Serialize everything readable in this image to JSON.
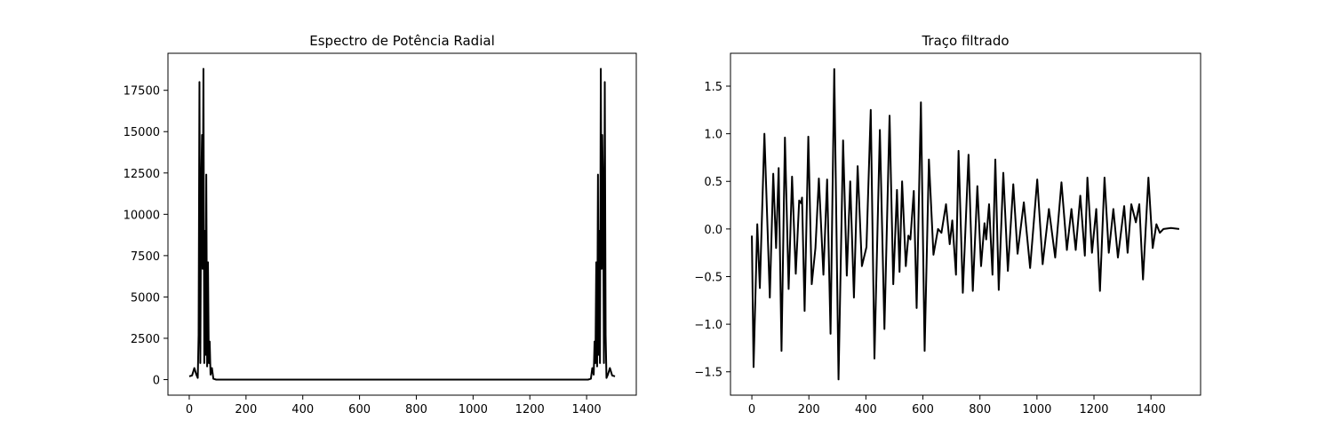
{
  "chart_data": [
    {
      "type": "line",
      "title": "Espectro de Potência Radial",
      "color": "#000000",
      "x": [
        0,
        10,
        18,
        25,
        30,
        33,
        36,
        39,
        42,
        45,
        47,
        50,
        53,
        56,
        58,
        60,
        63,
        66,
        69,
        72,
        75,
        80,
        85,
        95,
        200,
        700,
        1300,
        1405,
        1415,
        1420,
        1425,
        1428,
        1431,
        1434,
        1437,
        1440,
        1442,
        1444,
        1447,
        1450,
        1453,
        1455,
        1458,
        1461,
        1464,
        1467,
        1470,
        1475,
        1482,
        1490,
        1500
      ],
      "values": [
        200,
        250,
        700,
        300,
        100,
        2700,
        18000,
        1000,
        11500,
        14800,
        6700,
        18800,
        1000,
        9000,
        1500,
        12400,
        800,
        7100,
        1000,
        2300,
        300,
        700,
        50,
        0,
        0,
        0,
        0,
        0,
        50,
        700,
        300,
        2300,
        1000,
        7100,
        800,
        12400,
        1500,
        9000,
        1000,
        18800,
        6700,
        14800,
        11500,
        1000,
        18000,
        2700,
        100,
        300,
        700,
        250,
        200
      ],
      "xlim": [
        -75,
        1575
      ],
      "ylim": [
        -940,
        19740
      ],
      "xticks": [
        0,
        200,
        400,
        600,
        800,
        1000,
        1200,
        1400
      ],
      "yticks": [
        0,
        2500,
        5000,
        7500,
        10000,
        12500,
        15000,
        17500
      ]
    },
    {
      "type": "line",
      "title": "Traço filtrado",
      "color": "#000000",
      "x": [
        0,
        6,
        19,
        28,
        44,
        63,
        75,
        85,
        94,
        104,
        116,
        129,
        141,
        154,
        166,
        173,
        176,
        185,
        198,
        210,
        223,
        235,
        251,
        264,
        276,
        289,
        304,
        320,
        333,
        345,
        358,
        371,
        386,
        402,
        417,
        430,
        449,
        465,
        483,
        496,
        509,
        518,
        527,
        540,
        549,
        556,
        568,
        578,
        593,
        606,
        621,
        637,
        653,
        665,
        681,
        694,
        703,
        716,
        725,
        740,
        760,
        775,
        791,
        804,
        816,
        822,
        832,
        844,
        854,
        866,
        882,
        898,
        917,
        932,
        954,
        976,
        1001,
        1020,
        1042,
        1064,
        1086,
        1105,
        1121,
        1136,
        1152,
        1168,
        1177,
        1193,
        1208,
        1221,
        1237,
        1252,
        1268,
        1284,
        1306,
        1318,
        1331,
        1347,
        1359,
        1372,
        1391,
        1406,
        1419,
        1431,
        1444,
        1470,
        1499
      ],
      "values": [
        -0.07,
        -1.45,
        0.05,
        -0.62,
        1.0,
        -0.72,
        0.58,
        -0.2,
        0.64,
        -1.28,
        0.96,
        -0.63,
        0.55,
        -0.47,
        0.3,
        0.27,
        0.33,
        -0.86,
        0.97,
        -0.58,
        -0.2,
        0.53,
        -0.48,
        0.52,
        -1.1,
        1.68,
        -1.58,
        0.93,
        -0.49,
        0.5,
        -0.72,
        0.66,
        -0.39,
        -0.19,
        1.25,
        -1.36,
        1.04,
        -1.05,
        1.19,
        -0.58,
        0.41,
        -0.45,
        0.5,
        -0.39,
        -0.07,
        -0.11,
        0.4,
        -0.83,
        1.33,
        -1.28,
        0.73,
        -0.27,
        0.0,
        -0.04,
        0.26,
        -0.16,
        0.09,
        -0.48,
        0.82,
        -0.67,
        0.78,
        -0.65,
        0.45,
        -0.39,
        0.06,
        -0.11,
        0.26,
        -0.48,
        0.73,
        -0.64,
        0.59,
        -0.44,
        0.47,
        -0.26,
        0.28,
        -0.41,
        0.52,
        -0.37,
        0.21,
        -0.3,
        0.49,
        -0.22,
        0.21,
        -0.22,
        0.35,
        -0.28,
        0.54,
        -0.25,
        0.21,
        -0.65,
        0.54,
        -0.25,
        0.21,
        -0.3,
        0.24,
        -0.25,
        0.26,
        0.07,
        0.26,
        -0.53,
        0.54,
        -0.2,
        0.05,
        -0.04,
        0.0,
        0.01,
        0.0
      ],
      "xlim": [
        -75,
        1574
      ],
      "ylim": [
        -1.745,
        1.845
      ],
      "xticks": [
        0,
        200,
        400,
        600,
        800,
        1000,
        1200,
        1400
      ],
      "yticks": [
        {
          "value": -1.5,
          "label": "−1.5"
        },
        {
          "value": -1,
          "label": "−1.0"
        },
        {
          "value": -0.5,
          "label": "−0.5"
        },
        {
          "value": 0,
          "label": "0.0"
        },
        0.5,
        {
          "value": 1,
          "label": "1.0"
        },
        1.5
      ]
    }
  ]
}
